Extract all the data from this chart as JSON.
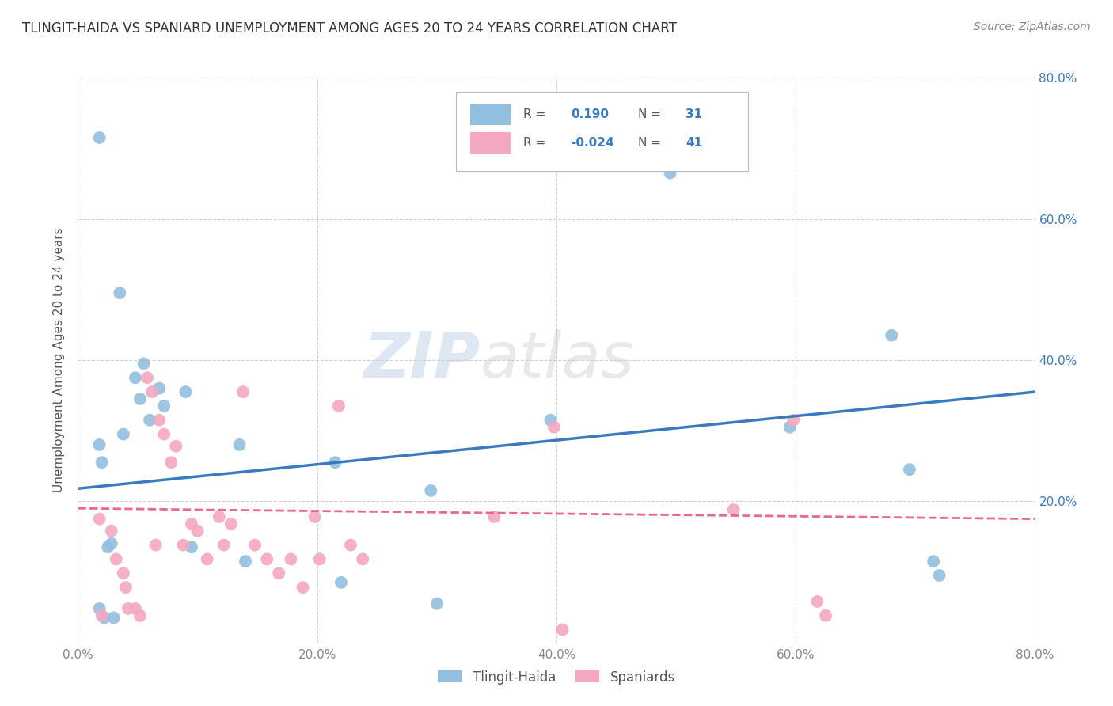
{
  "title": "TLINGIT-HAIDA VS SPANIARD UNEMPLOYMENT AMONG AGES 20 TO 24 YEARS CORRELATION CHART",
  "source": "Source: ZipAtlas.com",
  "ylabel": "Unemployment Among Ages 20 to 24 years",
  "xlim": [
    0.0,
    0.8
  ],
  "ylim": [
    0.0,
    0.8
  ],
  "x_ticks": [
    0.0,
    0.2,
    0.4,
    0.6,
    0.8
  ],
  "x_tick_labels": [
    "0.0%",
    "20.0%",
    "40.0%",
    "60.0%",
    "80.0%"
  ],
  "y_ticks": [
    0.0,
    0.2,
    0.4,
    0.6,
    0.8
  ],
  "y_tick_labels_right": [
    "",
    "20.0%",
    "40.0%",
    "60.0%",
    "80.0%"
  ],
  "tlingit_color": "#92bfdf",
  "spaniard_color": "#f4a8c0",
  "trendline_blue": "#3a7bbf",
  "trendline_pink": "#e8698a",
  "watermark_text": "ZIPatlas",
  "legend_R_blue": "0.190",
  "legend_N_blue": "31",
  "legend_R_pink": "-0.024",
  "legend_N_pink": "41",
  "tlingit_points_x": [
    0.018,
    0.035,
    0.055,
    0.06,
    0.038,
    0.018,
    0.02,
    0.025,
    0.028,
    0.048,
    0.052,
    0.068,
    0.072,
    0.09,
    0.095,
    0.135,
    0.14,
    0.215,
    0.22,
    0.295,
    0.3,
    0.395,
    0.495,
    0.595,
    0.68,
    0.695,
    0.72,
    0.715,
    0.018,
    0.022,
    0.03
  ],
  "tlingit_points_y": [
    0.715,
    0.495,
    0.395,
    0.315,
    0.295,
    0.28,
    0.255,
    0.135,
    0.14,
    0.375,
    0.345,
    0.36,
    0.335,
    0.355,
    0.135,
    0.28,
    0.115,
    0.255,
    0.085,
    0.215,
    0.055,
    0.315,
    0.665,
    0.305,
    0.435,
    0.245,
    0.095,
    0.115,
    0.048,
    0.035,
    0.035
  ],
  "spaniard_points_x": [
    0.018,
    0.02,
    0.028,
    0.032,
    0.038,
    0.04,
    0.042,
    0.048,
    0.052,
    0.058,
    0.062,
    0.065,
    0.068,
    0.072,
    0.078,
    0.082,
    0.088,
    0.095,
    0.1,
    0.108,
    0.118,
    0.122,
    0.128,
    0.138,
    0.148,
    0.158,
    0.168,
    0.178,
    0.188,
    0.198,
    0.202,
    0.218,
    0.228,
    0.238,
    0.348,
    0.398,
    0.405,
    0.548,
    0.598,
    0.618,
    0.625
  ],
  "spaniard_points_y": [
    0.175,
    0.038,
    0.158,
    0.118,
    0.098,
    0.078,
    0.048,
    0.048,
    0.038,
    0.375,
    0.355,
    0.138,
    0.315,
    0.295,
    0.255,
    0.278,
    0.138,
    0.168,
    0.158,
    0.118,
    0.178,
    0.138,
    0.168,
    0.355,
    0.138,
    0.118,
    0.098,
    0.118,
    0.078,
    0.178,
    0.118,
    0.335,
    0.138,
    0.118,
    0.178,
    0.305,
    0.018,
    0.188,
    0.315,
    0.058,
    0.038
  ],
  "blue_line_x": [
    0.0,
    0.8
  ],
  "blue_line_y": [
    0.218,
    0.355
  ],
  "pink_line_x": [
    0.0,
    0.8
  ],
  "pink_line_y": [
    0.19,
    0.175
  ]
}
